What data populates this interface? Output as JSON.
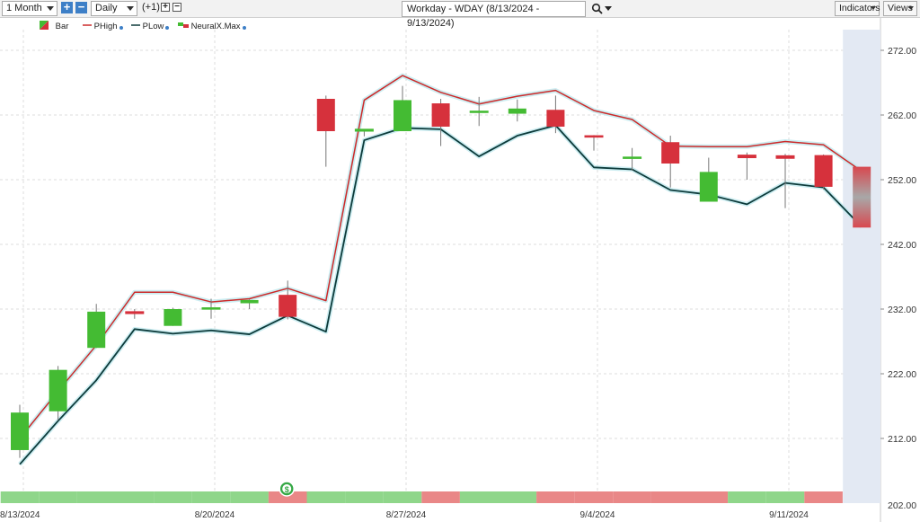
{
  "toolbar": {
    "period_label": "1 Month",
    "interval_label": "Daily",
    "offset_label": "(+1)",
    "chart_title": "Workday - WDAY (8/13/2024 - 9/13/2024)",
    "indicators_label": "Indicators",
    "views_label": "Views",
    "plus_glyph": "+",
    "minus_glyph": "−"
  },
  "legend": {
    "bar": "Bar",
    "phigh": "PHigh",
    "plow": "PLow",
    "neuralx": "NeuralX.Max"
  },
  "colors": {
    "up": "#44bb33",
    "down": "#d6313c",
    "phigh": "#cc2a2a",
    "plow": "#0d3b3b",
    "signal_up": "#8fd68a",
    "signal_down": "#e98787",
    "forecast_shade": "#e3e9f3",
    "grid": "#dcdcdc",
    "dollar_marker": "#35a845"
  },
  "chart_data": {
    "type": "candlestick",
    "ticker": "WDAY",
    "title": "Workday - WDAY (8/13/2024 - 9/13/2024)",
    "ylim": [
      202,
      274
    ],
    "y_ticks": [
      212,
      222,
      232,
      242,
      252,
      262,
      272
    ],
    "y_tick_labels": [
      "212.00",
      "222.00",
      "232.00",
      "242.00",
      "252.00",
      "262.00",
      "272.00"
    ],
    "x_tick_labels": [
      {
        "index": 0,
        "label": "8/13/2024"
      },
      {
        "index": 5,
        "label": "8/20/2024"
      },
      {
        "index": 10,
        "label": "8/27/2024"
      },
      {
        "index": 15,
        "label": "9/4/2024"
      },
      {
        "index": 20,
        "label": "9/11/2024"
      }
    ],
    "candles": [
      {
        "o": 210.2,
        "h": 217.2,
        "l": 209.0,
        "c": 216.0
      },
      {
        "o": 216.2,
        "h": 223.2,
        "l": 214.8,
        "c": 222.6
      },
      {
        "o": 226.0,
        "h": 232.8,
        "l": 226.0,
        "c": 231.6
      },
      {
        "o": 231.6,
        "h": 232.0,
        "l": 230.5,
        "c": 231.3
      },
      {
        "o": 229.4,
        "h": 232.2,
        "l": 229.4,
        "c": 232.0
      },
      {
        "o": 232.2,
        "h": 233.6,
        "l": 230.5,
        "c": 232.2
      },
      {
        "o": 232.9,
        "h": 233.5,
        "l": 232.0,
        "c": 233.4
      },
      {
        "o": 234.2,
        "h": 236.4,
        "l": 230.4,
        "c": 230.8
      },
      {
        "o": 264.5,
        "h": 265.0,
        "l": 254.0,
        "c": 259.5
      },
      {
        "o": 259.5,
        "h": 259.8,
        "l": 258.7,
        "c": 259.8
      },
      {
        "o": 259.5,
        "h": 266.5,
        "l": 259.5,
        "c": 264.3
      },
      {
        "o": 263.8,
        "h": 264.5,
        "l": 257.2,
        "c": 260.2
      },
      {
        "o": 262.5,
        "h": 264.8,
        "l": 260.3,
        "c": 262.6
      },
      {
        "o": 262.2,
        "h": 264.4,
        "l": 261.0,
        "c": 263.0
      },
      {
        "o": 262.8,
        "h": 265.0,
        "l": 259.2,
        "c": 260.2
      },
      {
        "o": 258.8,
        "h": 258.9,
        "l": 256.5,
        "c": 258.6
      },
      {
        "o": 255.3,
        "h": 256.9,
        "l": 253.4,
        "c": 255.5
      },
      {
        "o": 257.8,
        "h": 258.8,
        "l": 250.8,
        "c": 254.5
      },
      {
        "o": 248.6,
        "h": 255.4,
        "l": 248.6,
        "c": 253.2
      },
      {
        "o": 255.8,
        "h": 256.2,
        "l": 252.0,
        "c": 255.4
      },
      {
        "o": 255.7,
        "h": 256.0,
        "l": 247.6,
        "c": 255.3
      },
      {
        "o": 255.8,
        "h": 255.9,
        "l": 250.5,
        "c": 250.9
      }
    ],
    "forecast_bar": {
      "index": 22,
      "high": 254.0,
      "low": 244.6
    },
    "series": [
      {
        "name": "PHigh",
        "values": [
          212.0,
          219.3,
          226.4,
          234.6,
          234.6,
          233.1,
          233.6,
          235.2,
          233.3,
          264.3,
          268.1,
          265.5,
          263.7,
          264.9,
          265.8,
          262.7,
          261.3,
          257.2,
          257.1,
          257.1,
          257.9,
          257.4,
          253.3
        ]
      },
      {
        "name": "PLow",
        "values": [
          208.0,
          214.7,
          221.0,
          228.9,
          228.2,
          228.7,
          228.1,
          231.0,
          228.5,
          258.1,
          260.0,
          259.8,
          255.6,
          258.8,
          260.4,
          253.9,
          253.6,
          250.4,
          249.7,
          248.2,
          251.5,
          250.8,
          244.7
        ]
      }
    ],
    "signal_strip": [
      "up",
      "up",
      "up",
      "up",
      "up",
      "up",
      "up",
      "down",
      "up",
      "up",
      "up",
      "down",
      "up",
      "up",
      "down",
      "down",
      "down",
      "down",
      "down",
      "up",
      "up",
      "down"
    ],
    "dollar_marker": {
      "index": 7,
      "symbol": "$"
    }
  }
}
